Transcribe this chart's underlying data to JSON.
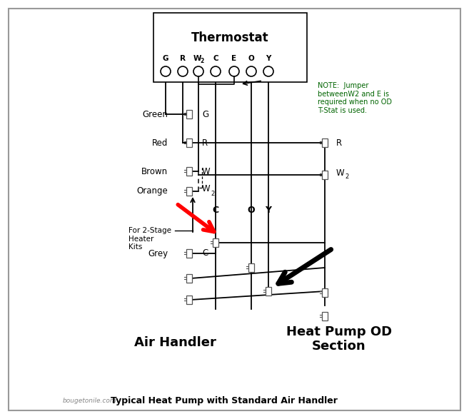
{
  "title": "Typical Heat Pump with Standard Air Handler",
  "watermark": "bougetonile.com",
  "note_text": "NOTE:  Jumper\nbetweenW2 and E is\nrequired when no OD\nT-Stat is used.",
  "note_color": "#006400",
  "air_handler_label": "Air Handler",
  "heat_pump_label": "Heat Pump OD\nSection",
  "bg": "#ffffff",
  "thermostat_label": "Thermostat",
  "terminals": [
    "G",
    "R",
    "W2",
    "C",
    "E",
    "O",
    "Y"
  ],
  "left_labels": [
    "Green",
    "Red",
    "Brown",
    "Orange",
    "Grey"
  ],
  "left_terms": [
    "G",
    "R",
    "W",
    "W2",
    "C"
  ],
  "right_terms": [
    "R",
    "W2"
  ],
  "coy": [
    "C",
    "O",
    "Y"
  ]
}
